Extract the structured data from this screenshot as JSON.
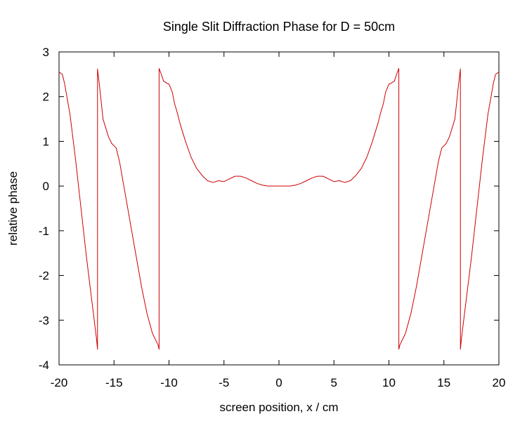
{
  "chart_data": {
    "type": "line",
    "title": "Single Slit Diffraction Phase for D = 50cm",
    "xlabel": "screen position, x / cm",
    "ylabel": "relative phase",
    "xlim": [
      -20,
      20
    ],
    "ylim": [
      -4,
      3
    ],
    "x_ticks": [
      -20,
      -15,
      -10,
      -5,
      0,
      5,
      10,
      15,
      20
    ],
    "y_ticks": [
      -4,
      -3,
      -2,
      -1,
      0,
      1,
      2,
      3
    ],
    "x_tick_labels": [
      "-20",
      "-15",
      "-10",
      "-5",
      "0",
      "5",
      "10",
      "15",
      "20"
    ],
    "y_tick_labels": [
      "-4",
      "-3",
      "-2",
      "-1",
      "0",
      "1",
      "2",
      "3"
    ],
    "grid": false,
    "legend": "none",
    "series": [
      {
        "color": "#cc0000",
        "x": [
          -20.0,
          -19.7,
          -19.5,
          -19.0,
          -18.5,
          -18.0,
          -17.5,
          -17.0,
          -16.6,
          -16.5,
          -16.5,
          -16.3,
          -16.0,
          -15.5,
          -15.2,
          -15.0,
          -14.8,
          -14.5,
          -14.0,
          -13.5,
          -13.0,
          -12.5,
          -12.0,
          -11.5,
          -11.0,
          -10.9,
          -10.9,
          -10.7,
          -10.5,
          -10.2,
          -10.0,
          -9.7,
          -9.5,
          -9.2,
          -9.0,
          -8.5,
          -8.0,
          -7.5,
          -7.0,
          -6.5,
          -6.0,
          -5.5,
          -5.0,
          -4.5,
          -4.0,
          -3.5,
          -3.0,
          -2.5,
          -2.0,
          -1.5,
          -1.0,
          -0.5,
          0.0,
          0.5,
          1.0,
          1.5,
          2.0,
          2.5,
          3.0,
          3.5,
          4.0,
          4.5,
          5.0,
          5.5,
          6.0,
          6.5,
          7.0,
          7.5,
          8.0,
          8.5,
          9.0,
          9.2,
          9.5,
          9.7,
          10.0,
          10.2,
          10.5,
          10.7,
          10.9,
          10.9,
          11.0,
          11.5,
          12.0,
          12.5,
          13.0,
          13.5,
          14.0,
          14.5,
          14.8,
          15.0,
          15.2,
          15.5,
          16.0,
          16.3,
          16.5,
          16.5,
          16.6,
          17.0,
          17.5,
          18.0,
          18.5,
          19.0,
          19.5,
          19.7,
          20.0
        ],
        "y": [
          2.55,
          2.5,
          2.3,
          1.6,
          0.6,
          -0.5,
          -1.6,
          -2.6,
          -3.4,
          -3.65,
          2.62,
          2.2,
          1.5,
          1.1,
          0.95,
          0.9,
          0.85,
          0.55,
          -0.15,
          -0.85,
          -1.55,
          -2.25,
          -2.85,
          -3.3,
          -3.55,
          -3.65,
          2.63,
          2.5,
          2.35,
          2.3,
          2.28,
          2.1,
          1.85,
          1.6,
          1.4,
          1.0,
          0.65,
          0.4,
          0.24,
          0.12,
          0.08,
          0.12,
          0.1,
          0.16,
          0.22,
          0.22,
          0.18,
          0.12,
          0.06,
          0.02,
          0.0,
          0.0,
          0.0,
          0.0,
          0.0,
          0.02,
          0.06,
          0.12,
          0.18,
          0.22,
          0.22,
          0.16,
          0.1,
          0.12,
          0.08,
          0.12,
          0.24,
          0.4,
          0.65,
          1.0,
          1.4,
          1.6,
          1.85,
          2.1,
          2.28,
          2.3,
          2.35,
          2.5,
          2.63,
          -3.65,
          -3.55,
          -3.3,
          -2.85,
          -2.25,
          -1.55,
          -0.85,
          -0.15,
          0.55,
          0.85,
          0.9,
          0.95,
          1.1,
          1.5,
          2.2,
          2.62,
          -3.65,
          -3.4,
          -2.6,
          -1.6,
          -0.5,
          0.6,
          1.6,
          2.3,
          2.5,
          2.55
        ]
      }
    ]
  }
}
